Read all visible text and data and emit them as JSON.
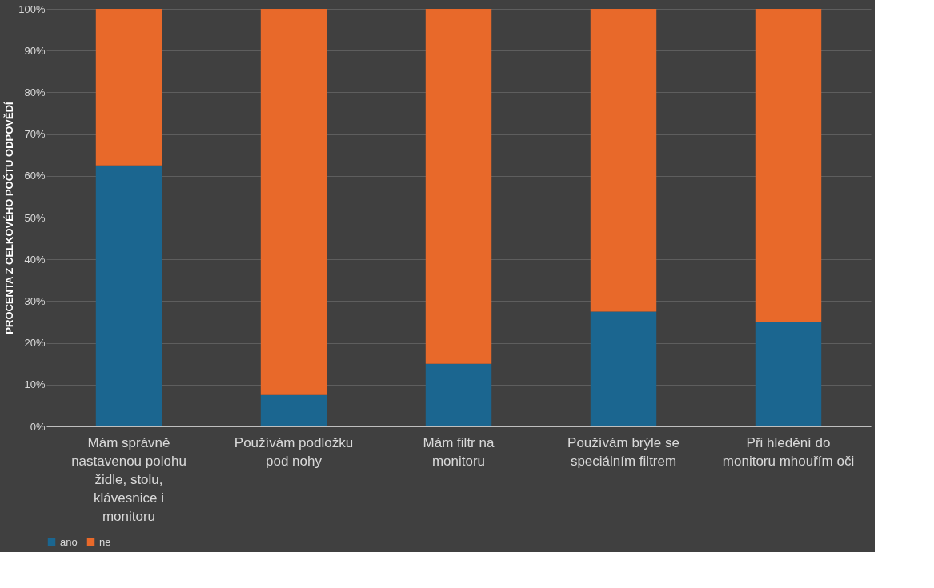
{
  "chart_data": {
    "type": "bar",
    "stacked": true,
    "ylabel": "PROCENTA Z CELKOVÉHO POČTU ODPOVĚDÍ",
    "categories": [
      "Mám správně nastavenou polohu židle, stolu, klávesnice i monitoru",
      "Používám podložku pod nohy",
      "Mám filtr na monitoru",
      "Používám brýle se speciálním filtrem",
      "Při hledění do monitoru mhouřím oči"
    ],
    "series": [
      {
        "name": "ano",
        "color": "#1b6690",
        "values": [
          62.5,
          7.5,
          15,
          27.5,
          25
        ]
      },
      {
        "name": "ne",
        "color": "#e8692a",
        "values": [
          37.5,
          92.5,
          85,
          72.5,
          75
        ]
      }
    ],
    "ylim": [
      0,
      100
    ],
    "yticks": [
      {
        "value": 0,
        "label": "0%"
      },
      {
        "value": 10,
        "label": "10%"
      },
      {
        "value": 20,
        "label": "20%"
      },
      {
        "value": 30,
        "label": "30%"
      },
      {
        "value": 40,
        "label": "40%"
      },
      {
        "value": 50,
        "label": "50%"
      },
      {
        "value": 60,
        "label": "60%"
      },
      {
        "value": 70,
        "label": "70%"
      },
      {
        "value": 80,
        "label": "80%"
      },
      {
        "value": 90,
        "label": "90%"
      },
      {
        "value": 100,
        "label": "100%"
      }
    ],
    "grid": "y",
    "legend": "bottom"
  }
}
